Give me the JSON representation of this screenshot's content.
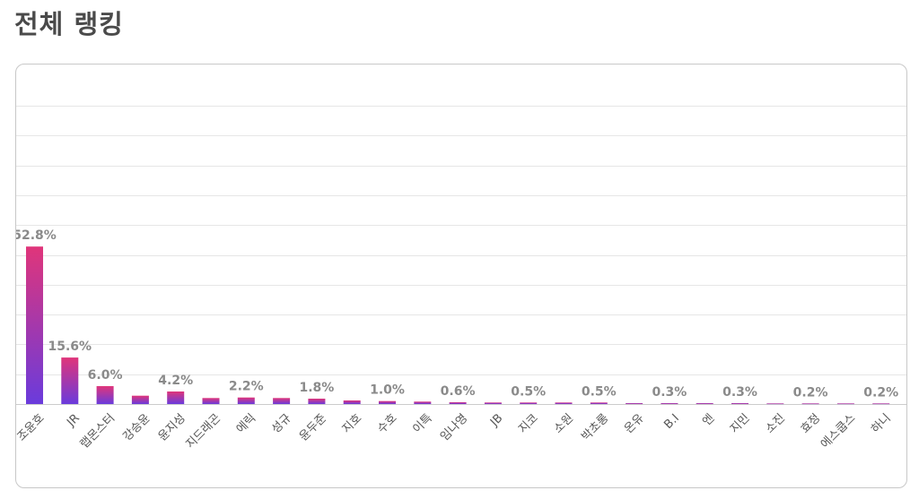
{
  "page": {
    "title": "전체 랭킹"
  },
  "chart_data": {
    "type": "bar",
    "categories": [
      "조윤호",
      "JR",
      "랩몬스터",
      "강승윤",
      "윤지성",
      "지드래곤",
      "에릭",
      "성규",
      "윤두준",
      "지호",
      "수호",
      "이특",
      "임나영",
      "JB",
      "지코",
      "소원",
      "박초롱",
      "온유",
      "B.I",
      "엔",
      "지민",
      "소진",
      "효정",
      "에스쿱스",
      "하니"
    ],
    "values": [
      52.8,
      15.6,
      6.0,
      2.8,
      4.2,
      2.0,
      2.2,
      2.0,
      1.8,
      1.2,
      1.0,
      0.8,
      0.6,
      0.5,
      0.5,
      0.5,
      0.5,
      0.3,
      0.3,
      0.3,
      0.3,
      0.2,
      0.2,
      0.2,
      0.2
    ],
    "data_labels": [
      {
        "index": 0,
        "text": "52.8%"
      },
      {
        "index": 1,
        "text": "15.6%"
      },
      {
        "index": 2,
        "text": "6.0%"
      },
      {
        "index": 4,
        "text": "4.2%"
      },
      {
        "index": 6,
        "text": "2.2%"
      },
      {
        "index": 8,
        "text": "1.8%"
      },
      {
        "index": 10,
        "text": "1.0%"
      },
      {
        "index": 12,
        "text": "0.6%"
      },
      {
        "index": 14,
        "text": "0.5%"
      },
      {
        "index": 16,
        "text": "0.5%"
      },
      {
        "index": 18,
        "text": "0.3%"
      },
      {
        "index": 20,
        "text": "0.3%"
      },
      {
        "index": 22,
        "text": "0.2%"
      },
      {
        "index": 24,
        "text": "0.2%"
      }
    ],
    "ylim": [
      0,
      100
    ],
    "grid": true,
    "colors": {
      "bar_top": "#e0357a",
      "bar_bottom": "#6a3bdc",
      "grid": "#e6e6e6",
      "label": "#8a8a8a"
    }
  }
}
